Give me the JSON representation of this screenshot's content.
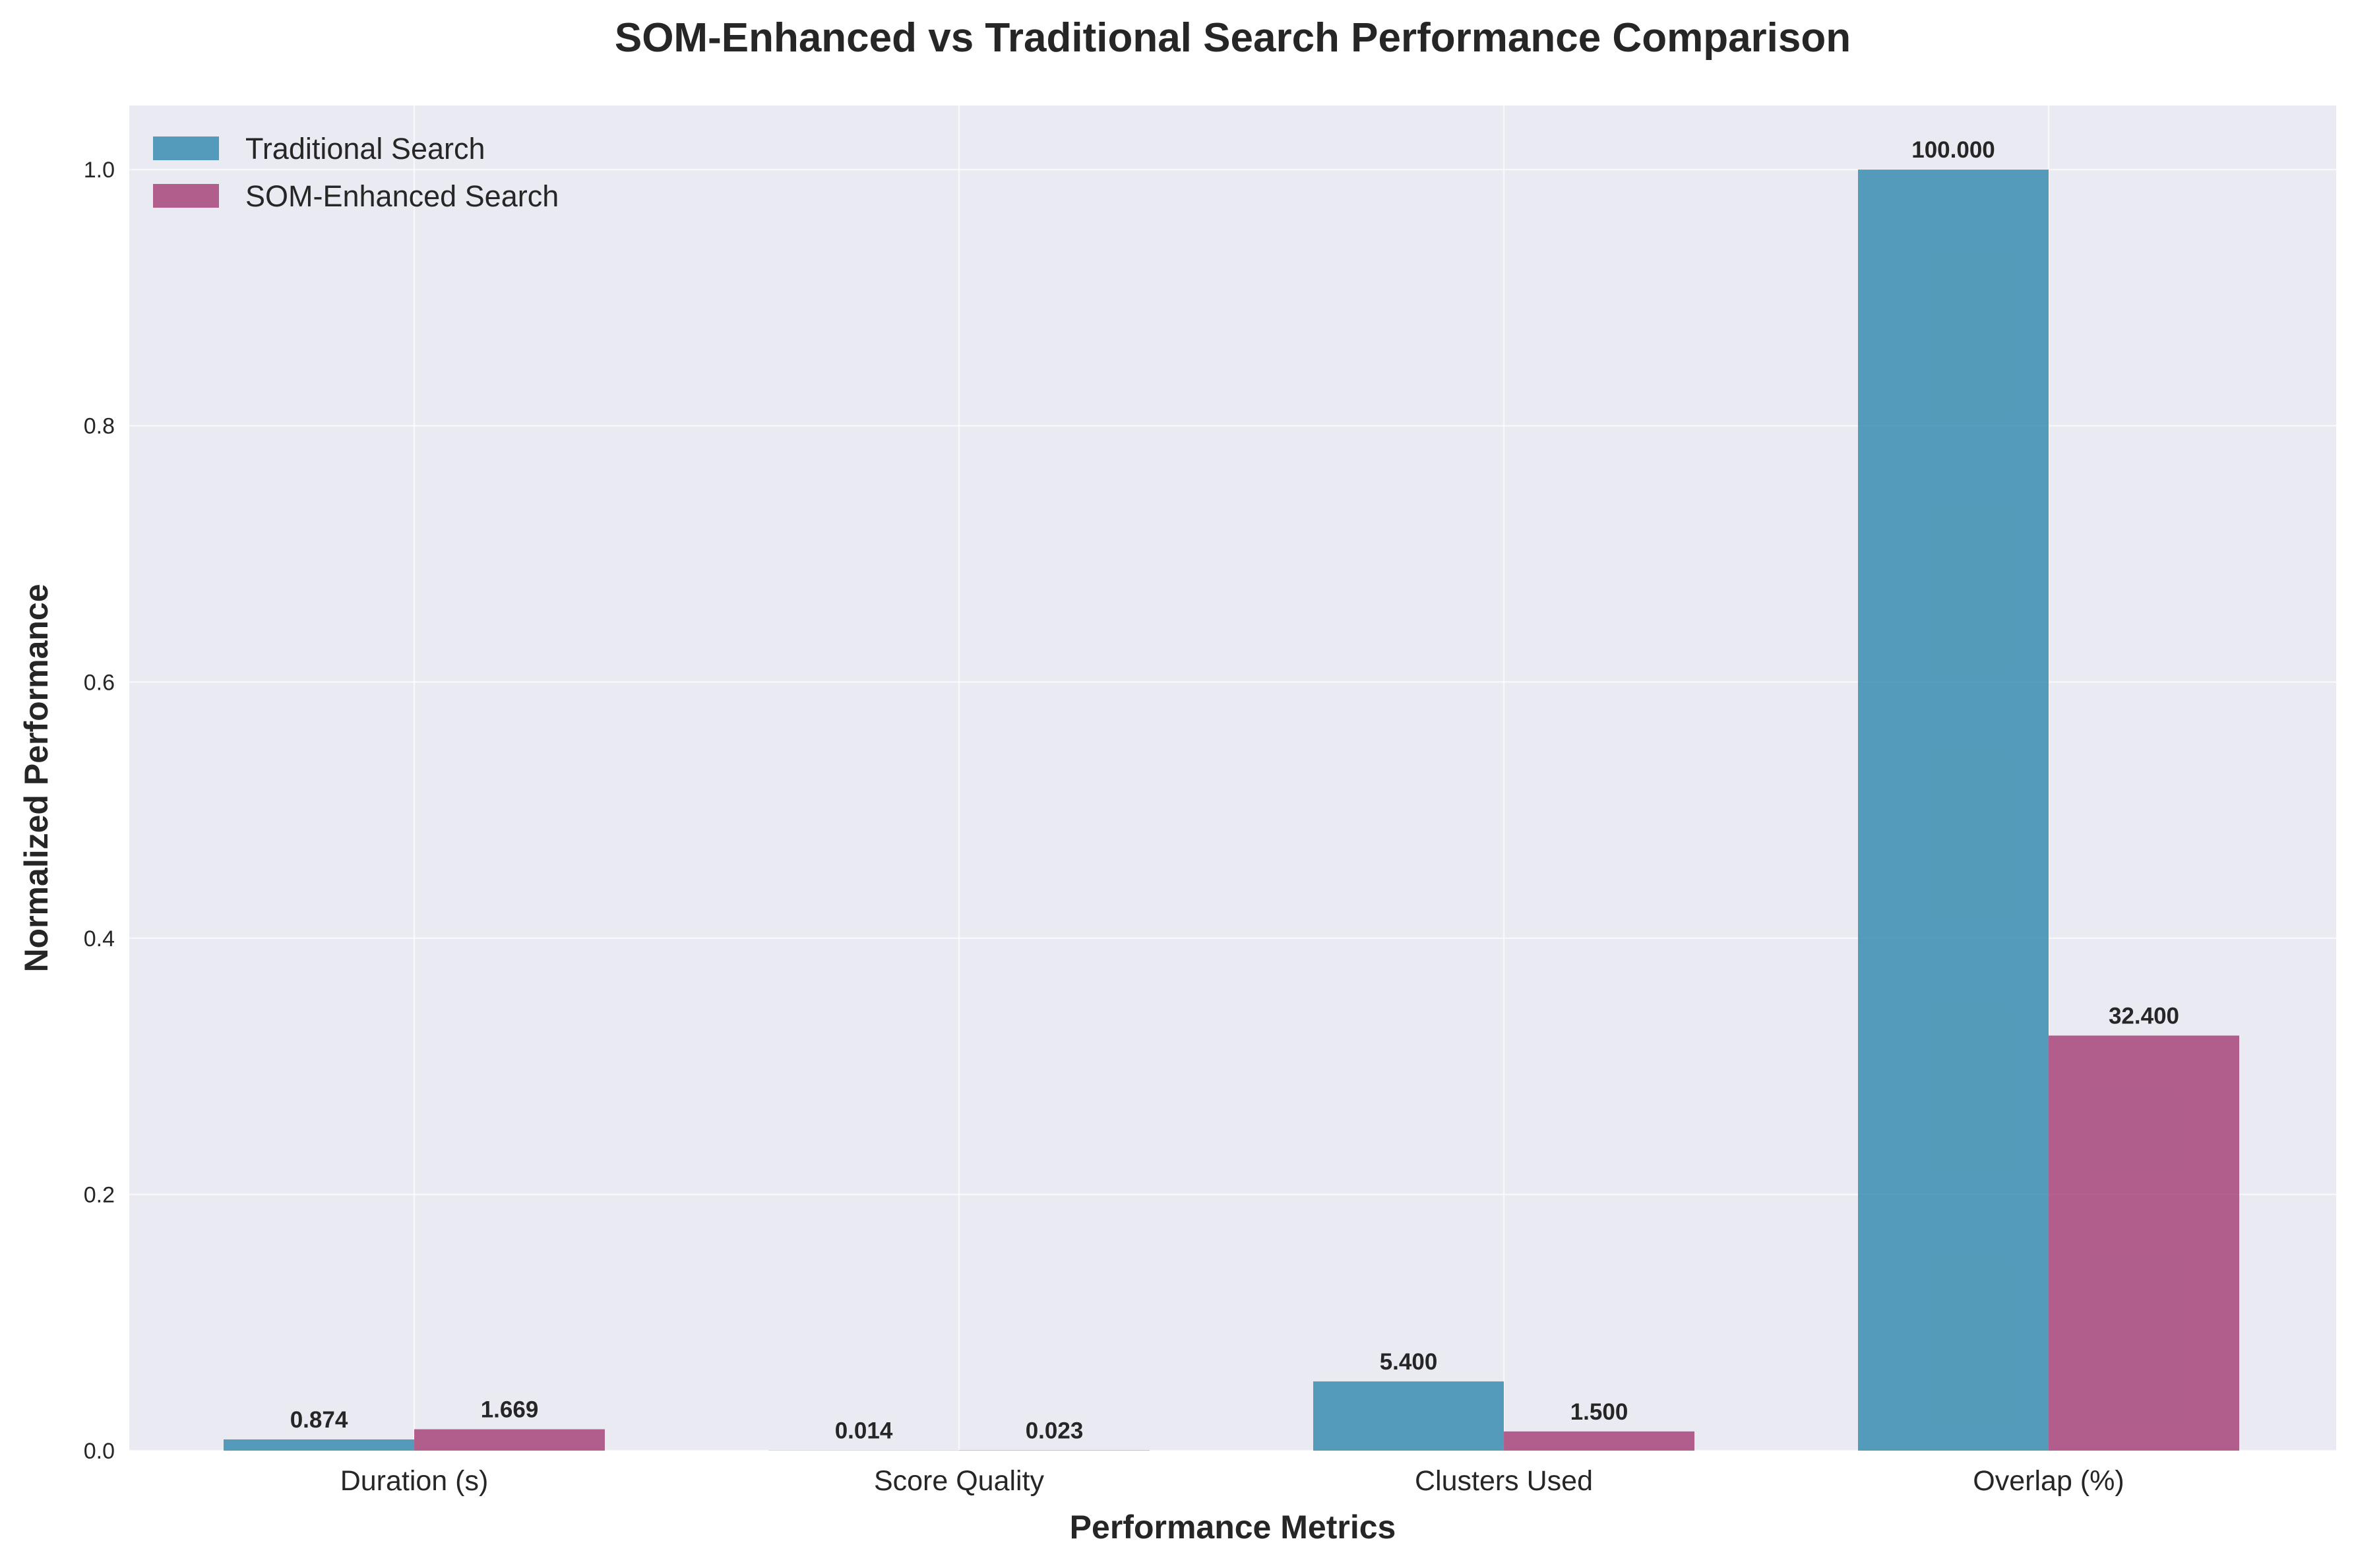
{
  "chart_data": {
    "type": "bar",
    "title": "SOM-Enhanced vs Traditional Search Performance Comparison",
    "xlabel": "Performance Metrics",
    "ylabel": "Normalized Performance",
    "ylim": [
      0,
      1.05
    ],
    "yticks": [
      "0.0",
      "0.2",
      "0.4",
      "0.6",
      "0.8",
      "1.0"
    ],
    "ytick_values": [
      0,
      0.2,
      0.4,
      0.6,
      0.8,
      1.0
    ],
    "grid": true,
    "legend_position": "top-left",
    "categories": [
      "Duration (s)",
      "Score Quality",
      "Clusters Used",
      "Overlap (%)"
    ],
    "series": [
      {
        "name": "Traditional Search",
        "color": "#2E86AB",
        "values": [
          0.00874,
          0.00014,
          0.054,
          1.0
        ],
        "labels": [
          "0.874",
          "0.014",
          "5.400",
          "100.000"
        ]
      },
      {
        "name": "SOM-Enhanced Search",
        "color": "#A23B72",
        "values": [
          0.01669,
          0.00023,
          0.015,
          0.324
        ],
        "labels": [
          "1.669",
          "0.023",
          "1.500",
          "32.400"
        ]
      }
    ]
  }
}
